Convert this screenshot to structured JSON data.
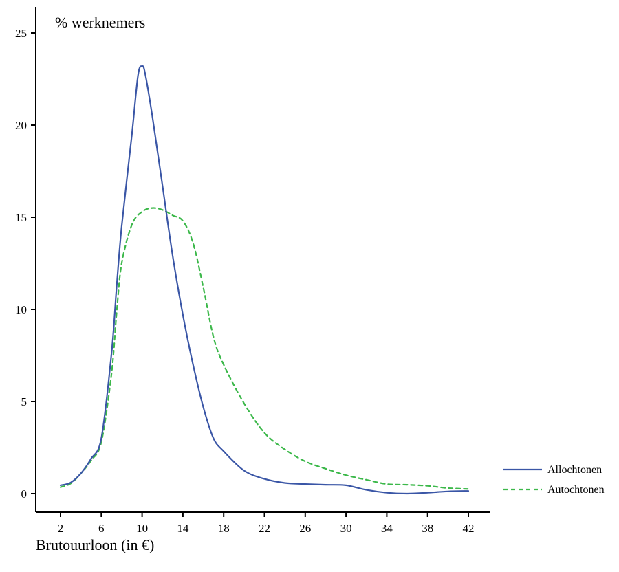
{
  "chart_data": {
    "type": "line",
    "title": "",
    "ylabel": "% werknemers",
    "xlabel": "Brutouurloon (in €)",
    "xlim": [
      0,
      44
    ],
    "ylim": [
      -1,
      26
    ],
    "x_ticks": [
      2,
      6,
      10,
      14,
      18,
      22,
      26,
      30,
      34,
      38,
      42
    ],
    "y_ticks": [
      0,
      5,
      10,
      15,
      20,
      25
    ],
    "grid": false,
    "legend_position": "right-bottom",
    "series": [
      {
        "name": "Allochtonen",
        "color": "#3a56a6",
        "style": "solid",
        "x": [
          2,
          3,
          4,
          5,
          6,
          7,
          7.5,
          8,
          9,
          9.6,
          10,
          10.3,
          11,
          12,
          13,
          14,
          15,
          16,
          17,
          18,
          20,
          22,
          24,
          26,
          28,
          30,
          32,
          34,
          36,
          38,
          40,
          42
        ],
        "y": [
          0.45,
          0.6,
          1.1,
          1.9,
          3.0,
          7.6,
          11.2,
          14.5,
          19.5,
          22.7,
          23.2,
          22.8,
          20.5,
          16.7,
          12.9,
          9.7,
          7.0,
          4.7,
          3.0,
          2.3,
          1.25,
          0.8,
          0.58,
          0.52,
          0.48,
          0.45,
          0.2,
          0.05,
          0.0,
          0.05,
          0.12,
          0.14
        ]
      },
      {
        "name": "Autochtonen",
        "color": "#3cb84a",
        "style": "dashed",
        "x": [
          2,
          3,
          4,
          5,
          6,
          7,
          7.5,
          8,
          9,
          10,
          11,
          12,
          13,
          14,
          15,
          16,
          17,
          18,
          20,
          22,
          24,
          26,
          28,
          30,
          32,
          34,
          36,
          38,
          40,
          42
        ],
        "y": [
          0.35,
          0.55,
          1.1,
          1.8,
          2.8,
          6.5,
          9.8,
          12.5,
          14.6,
          15.3,
          15.5,
          15.4,
          15.1,
          14.8,
          13.6,
          11.2,
          8.5,
          7.0,
          4.9,
          3.3,
          2.4,
          1.75,
          1.35,
          1.0,
          0.75,
          0.52,
          0.48,
          0.42,
          0.3,
          0.25
        ]
      }
    ]
  }
}
